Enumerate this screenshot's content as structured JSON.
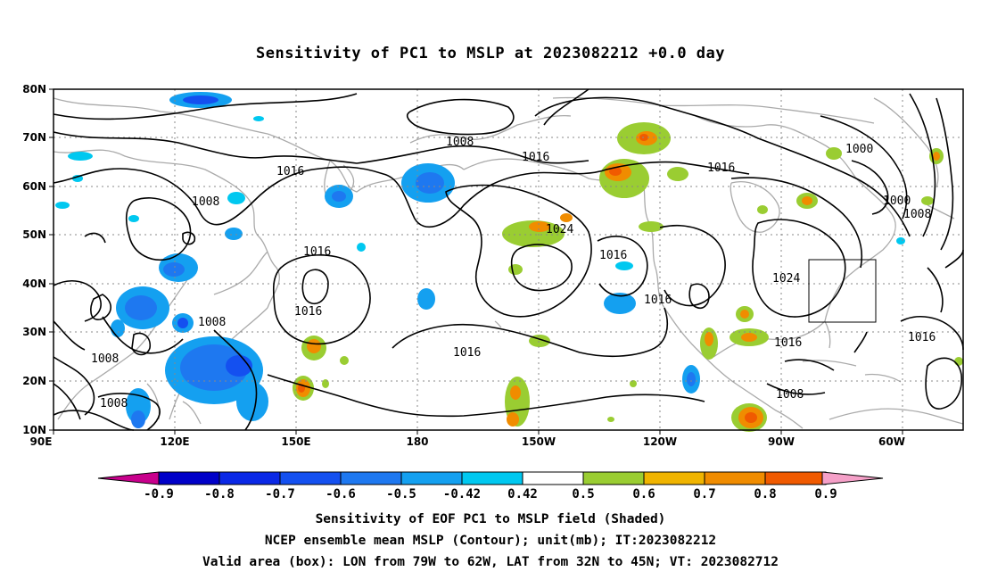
{
  "title": "Sensitivity of PC1 to MSLP at 2023082212 +0.0 day",
  "map": {
    "lat_labels": [
      "80N",
      "70N",
      "60N",
      "50N",
      "40N",
      "30N",
      "20N",
      "10N"
    ],
    "lon_labels": [
      "90E",
      "120E",
      "150E",
      "180",
      "150W",
      "120W",
      "90W",
      "60W"
    ],
    "contour_labels": [
      "1008",
      "1016",
      "1008",
      "1016",
      "1016",
      "1008",
      "1008",
      "1008",
      "1016",
      "1024",
      "1016",
      "1016",
      "1016",
      "1016",
      "1000",
      "1000",
      "1008",
      "1024",
      "1016",
      "1008",
      "1016"
    ],
    "valid_box": {
      "lon_range": "79W to 62W",
      "lat_range": "32N to 45N"
    },
    "shading_colors": {
      "neg_09": "#0000c8",
      "neg_08": "#0a28e6",
      "neg_07": "#1450f0",
      "neg_06": "#1e78f0",
      "neg_05": "#14a0f0",
      "neg_042": "#00c8f0",
      "pos_042": "#9acd32",
      "pos_05": "#f0b400",
      "pos_06": "#f08c00",
      "pos_07": "#f05a00",
      "pos_08": "#f01e00",
      "land": "#aaaaaa"
    }
  },
  "colorbar": {
    "labels": [
      "-0.9",
      "-0.8",
      "-0.7",
      "-0.6",
      "-0.5",
      "-0.42",
      "0.42",
      "0.5",
      "0.6",
      "0.7",
      "0.8",
      "0.9"
    ],
    "colors": [
      "#0000c8",
      "#0a28e6",
      "#1450f0",
      "#1e78f0",
      "#14a0f0",
      "#00c8f0",
      "#ffffff",
      "#9acd32",
      "#f0b400",
      "#f08c00",
      "#f05a00",
      "#f01e00",
      "#ff0000"
    ],
    "low_end_color": "#c8008c",
    "high_end_color": "#f5a0c8"
  },
  "captions": {
    "line1": "Sensitivity of EOF PC1 to MSLP field (Shaded)",
    "line2": "NCEP ensemble mean MSLP (Contour); unit(mb); IT:2023082212",
    "line3": "Valid area (box): LON from 79W to 62W, LAT from 32N to 45N; VT: 2023082712"
  }
}
